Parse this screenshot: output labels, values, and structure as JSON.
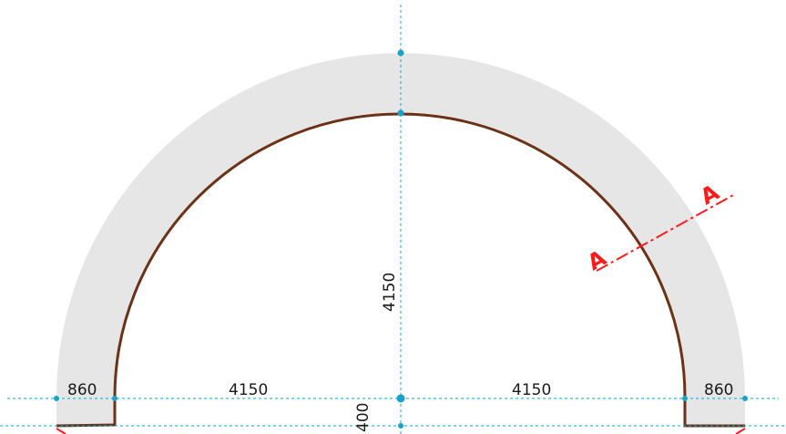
{
  "colors": {
    "fill": "#e6e6e6",
    "liner": "#6b3218",
    "guide": "#1aa3c9",
    "section": "#ff1a1a",
    "text": "#1a1a1a"
  },
  "dimensions": {
    "left_thickness": "860",
    "left_radius": "4150",
    "right_radius": "4150",
    "right_thickness": "860",
    "height": "4150",
    "base": "400"
  },
  "section": {
    "label_start": "A",
    "label_end": "A"
  }
}
